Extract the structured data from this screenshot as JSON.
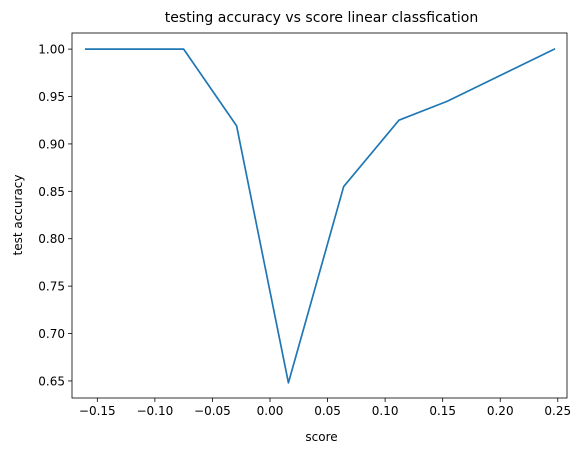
{
  "chart_data": {
    "type": "line",
    "title": "testing accuracy vs score linear classfication",
    "xlabel": "score",
    "ylabel": "test accuracy",
    "xlim": [
      -0.172,
      0.258
    ],
    "ylim": [
      0.632,
      1.017
    ],
    "xticks": [
      -0.15,
      -0.1,
      -0.05,
      0.0,
      0.05,
      0.1,
      0.15,
      0.2,
      0.25
    ],
    "xtick_labels": [
      "−0.15",
      "−0.10",
      "−0.05",
      "0.00",
      "0.05",
      "0.10",
      "0.15",
      "0.20",
      "0.25"
    ],
    "yticks": [
      0.65,
      0.7,
      0.75,
      0.8,
      0.85,
      0.9,
      0.95,
      1.0
    ],
    "ytick_labels": [
      "0.65",
      "0.70",
      "0.75",
      "0.80",
      "0.85",
      "0.90",
      "0.95",
      "1.00"
    ],
    "grid": false,
    "series": [
      {
        "color": "#1f77b4",
        "x": [
          -0.16,
          -0.075,
          -0.029,
          0.016,
          0.064,
          0.112,
          0.154,
          0.247
        ],
        "y": [
          1.0,
          1.0,
          0.919,
          0.648,
          0.855,
          0.925,
          0.945,
          1.0
        ]
      }
    ]
  }
}
